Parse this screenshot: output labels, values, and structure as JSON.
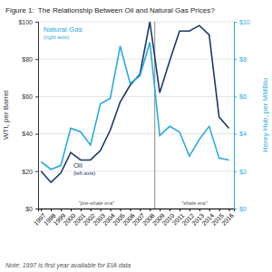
{
  "chart_data": {
    "type": "line",
    "title": "Figure 1:  The Relationship Between Oil and Natural Gas Prices?",
    "y_label": "WTI, per Barrel",
    "y2_label": "Henry Hub, per MMBtu",
    "x": [
      1997,
      1998,
      1999,
      2000,
      2001,
      2002,
      2003,
      2004,
      2005,
      2006,
      2007,
      2008,
      2009,
      2010,
      2011,
      2012,
      2013,
      2014,
      2015,
      2016
    ],
    "series": [
      {
        "name": "Oil",
        "color": "#1a3a6b",
        "axis": "y",
        "values": [
          20,
          14,
          19,
          30,
          26,
          26,
          31,
          42,
          57,
          66,
          72,
          100,
          62,
          79,
          95,
          95,
          98,
          93,
          49,
          43
        ]
      },
      {
        "name": "Natural Gas",
        "color": "#29abe2",
        "axis": "y2",
        "values": [
          2.5,
          2.1,
          2.3,
          4.3,
          4.1,
          3.4,
          5.6,
          5.9,
          8.7,
          6.7,
          7.1,
          8.9,
          3.9,
          4.4,
          4.1,
          2.8,
          3.7,
          4.4,
          2.7,
          2.6
        ]
      }
    ],
    "xlim": [
      1996.7,
      2016.5
    ],
    "xticks": [
      1997,
      1998,
      1999,
      2000,
      2001,
      2002,
      2003,
      2004,
      2005,
      2006,
      2007,
      2008,
      2009,
      2010,
      2011,
      2012,
      2013,
      2014,
      2015,
      2016
    ],
    "ylim": [
      0,
      100
    ],
    "yticks": [
      {
        "value": 0,
        "label": "$0"
      },
      {
        "value": 20,
        "label": "$20"
      },
      {
        "value": 40,
        "label": "$40"
      },
      {
        "value": 60,
        "label": "$60"
      },
      {
        "value": 80,
        "label": "$80"
      },
      {
        "value": 100,
        "label": "$100"
      }
    ],
    "y2lim": [
      0,
      10
    ],
    "y2ticks": [
      {
        "value": 0,
        "label": "$0"
      },
      {
        "value": 2,
        "label": "$2"
      },
      {
        "value": 4,
        "label": "$4"
      },
      {
        "value": 6,
        "label": "$6"
      },
      {
        "value": 8,
        "label": "$8"
      },
      {
        "value": 10,
        "label": "$10"
      }
    ],
    "vlines": [
      2008.5
    ],
    "annotations": [
      "\"pre-shale era\"",
      "\"shale era\"",
      "(left axis)",
      "(right axis)",
      "Note: 1997 is first year available for EIA data"
    ],
    "grid": true
  }
}
